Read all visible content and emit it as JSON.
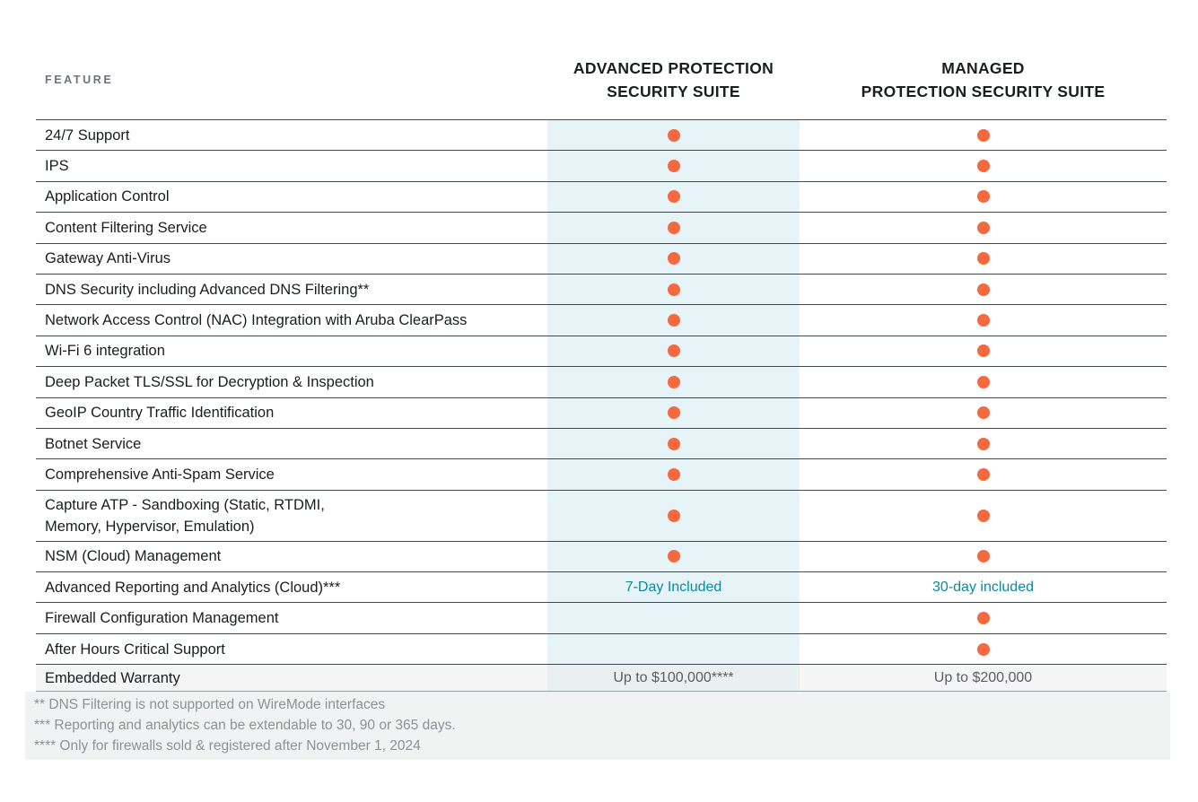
{
  "table": {
    "feature_header": "FEATURE",
    "columns": [
      {
        "name": "advanced",
        "label": "ADVANCED PROTECTION\nSECURITY SUITE"
      },
      {
        "name": "managed",
        "label": "MANAGED\nPROTECTION SECURITY SUITE"
      }
    ],
    "rows": [
      {
        "feature": "24/7 Support",
        "advanced": {
          "type": "dot"
        },
        "managed": {
          "type": "dot"
        }
      },
      {
        "feature": "IPS",
        "advanced": {
          "type": "dot"
        },
        "managed": {
          "type": "dot"
        }
      },
      {
        "feature": "Application Control",
        "advanced": {
          "type": "dot"
        },
        "managed": {
          "type": "dot"
        }
      },
      {
        "feature": "Content Filtering Service",
        "advanced": {
          "type": "dot"
        },
        "managed": {
          "type": "dot"
        }
      },
      {
        "feature": "Gateway Anti-Virus",
        "advanced": {
          "type": "dot"
        },
        "managed": {
          "type": "dot"
        }
      },
      {
        "feature": "DNS Security including Advanced DNS Filtering**",
        "advanced": {
          "type": "dot"
        },
        "managed": {
          "type": "dot"
        }
      },
      {
        "feature": "Network Access Control (NAC) Integration with Aruba ClearPass",
        "advanced": {
          "type": "dot"
        },
        "managed": {
          "type": "dot"
        }
      },
      {
        "feature": "Wi-Fi 6 integration",
        "advanced": {
          "type": "dot"
        },
        "managed": {
          "type": "dot"
        }
      },
      {
        "feature": "Deep Packet TLS/SSL for Decryption & Inspection",
        "advanced": {
          "type": "dot"
        },
        "managed": {
          "type": "dot"
        }
      },
      {
        "feature": "GeoIP Country Traffic Identification",
        "advanced": {
          "type": "dot"
        },
        "managed": {
          "type": "dot"
        }
      },
      {
        "feature": "Botnet Service",
        "advanced": {
          "type": "dot"
        },
        "managed": {
          "type": "dot"
        }
      },
      {
        "feature": "Comprehensive Anti-Spam Service",
        "advanced": {
          "type": "dot"
        },
        "managed": {
          "type": "dot"
        }
      },
      {
        "feature": "Capture ATP -  Sandboxing (Static, RTDMI,\nMemory, Hypervisor, Emulation)",
        "advanced": {
          "type": "dot"
        },
        "managed": {
          "type": "dot"
        }
      },
      {
        "feature": "NSM (Cloud) Management",
        "advanced": {
          "type": "dot"
        },
        "managed": {
          "type": "dot"
        }
      },
      {
        "feature": "Advanced Reporting and Analytics (Cloud)***",
        "advanced": {
          "type": "text",
          "text": "7-Day Included",
          "style": "teal"
        },
        "managed": {
          "type": "text",
          "text": "30-day included",
          "style": "teal"
        }
      },
      {
        "feature": "Firewall Configuration Management",
        "advanced": {
          "type": "empty"
        },
        "managed": {
          "type": "dot"
        }
      },
      {
        "feature": "After Hours Critical Support",
        "advanced": {
          "type": "empty"
        },
        "managed": {
          "type": "dot"
        }
      },
      {
        "feature": "Embedded Warranty",
        "advanced": {
          "type": "text",
          "text": "Up to $100,000****",
          "style": "gray"
        },
        "managed": {
          "type": "text",
          "text": "Up to $200,000",
          "style": "gray"
        }
      }
    ]
  },
  "footnotes": [
    "** DNS Filtering is not supported on WireMode interfaces",
    "*** Reporting and analytics can be extendable to 30, 90 or 365 days.",
    "**** Only for firewalls sold & registered after November 1, 2024"
  ],
  "colors": {
    "dot": "#f6693e",
    "teal_text": "#0a8a9c",
    "advanced_column_band": "rgba(213, 236, 244, 0.6)",
    "row_line": "#42474c",
    "footnote_text": "#8b9299"
  }
}
